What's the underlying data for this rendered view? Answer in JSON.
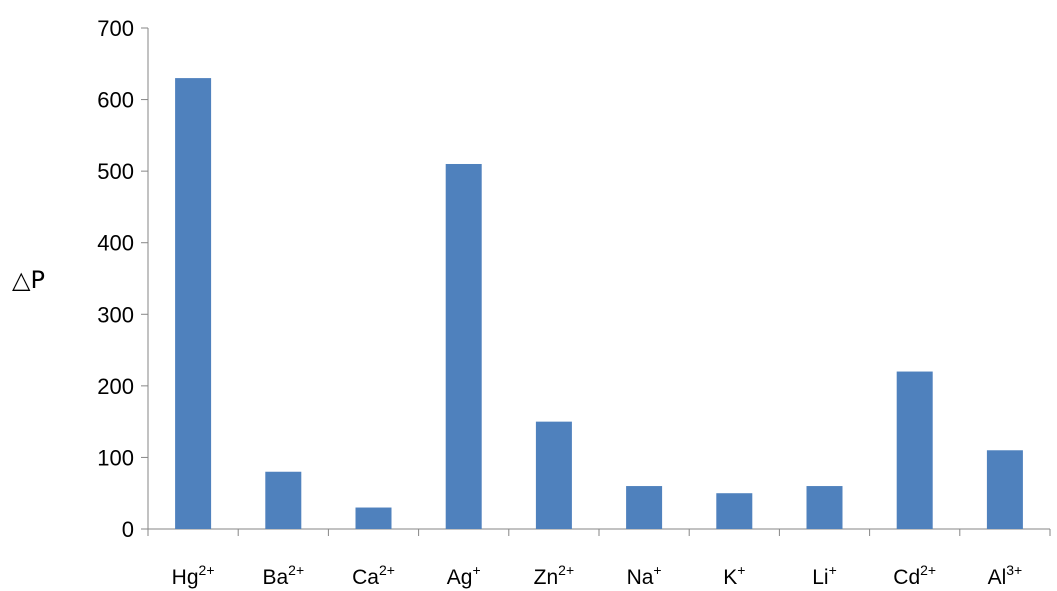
{
  "chart_data": {
    "type": "bar",
    "title": "",
    "xlabel": "",
    "ylabel": "△P",
    "ylim": [
      0,
      700
    ],
    "yticks": [
      0,
      100,
      200,
      300,
      400,
      500,
      600,
      700
    ],
    "grid": false,
    "legend": "none",
    "bar_color": "#4F81BD",
    "categories": [
      {
        "base": "Hg",
        "sup": "2+"
      },
      {
        "base": "Ba",
        "sup": "2+"
      },
      {
        "base": "Ca",
        "sup": "2+"
      },
      {
        "base": "Ag",
        "sup": "+"
      },
      {
        "base": "Zn",
        "sup": "2+"
      },
      {
        "base": "Na",
        "sup": "+"
      },
      {
        "base": "K",
        "sup": "+"
      },
      {
        "base": "Li",
        "sup": "+"
      },
      {
        "base": "Cd",
        "sup": "2+"
      },
      {
        "base": "Al",
        "sup": "3+"
      }
    ],
    "values": [
      630,
      80,
      30,
      510,
      150,
      60,
      50,
      60,
      220,
      110
    ]
  }
}
